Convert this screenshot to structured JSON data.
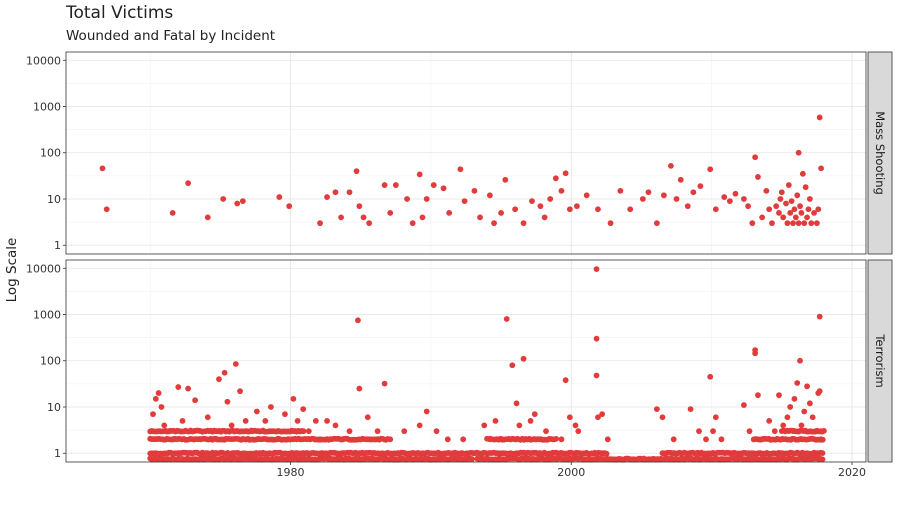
{
  "chart_data": {
    "type": "scatter",
    "title": "Total Victims",
    "subtitle": "Wounded and Fatal by Incident",
    "ylabel": "Log Scale",
    "xlabel": "",
    "y_scale": "log10",
    "ylim": [
      0.75,
      13000
    ],
    "xlim": [
      1964,
      2021
    ],
    "x_ticks": [
      "1980",
      "2000",
      "2020"
    ],
    "y_ticks": [
      "1",
      "10",
      "100",
      "1000",
      "10000"
    ],
    "point_color": "#e23b3b",
    "facets": [
      {
        "name": "Mass Shooting",
        "points": [
          [
            1966.6,
            46
          ],
          [
            1966.9,
            6
          ],
          [
            1971.6,
            5
          ],
          [
            1972.7,
            22
          ],
          [
            1974.1,
            4
          ],
          [
            1975.2,
            10
          ],
          [
            1976.2,
            8
          ],
          [
            1976.6,
            9
          ],
          [
            1979.2,
            11
          ],
          [
            1979.9,
            7
          ],
          [
            1982.1,
            3
          ],
          [
            1982.6,
            11
          ],
          [
            1983.2,
            14
          ],
          [
            1983.6,
            4
          ],
          [
            1984.2,
            14
          ],
          [
            1984.7,
            40
          ],
          [
            1984.9,
            7
          ],
          [
            1985.2,
            4
          ],
          [
            1985.6,
            3
          ],
          [
            1986.7,
            20
          ],
          [
            1987.1,
            5
          ],
          [
            1987.5,
            20
          ],
          [
            1988.3,
            10
          ],
          [
            1988.7,
            3
          ],
          [
            1989.2,
            34
          ],
          [
            1989.4,
            4
          ],
          [
            1989.7,
            10
          ],
          [
            1990.2,
            20
          ],
          [
            1990.9,
            17
          ],
          [
            1991.3,
            5
          ],
          [
            1992.1,
            44
          ],
          [
            1992.4,
            9
          ],
          [
            1993.1,
            15
          ],
          [
            1993.5,
            4
          ],
          [
            1994.2,
            12
          ],
          [
            1994.5,
            3
          ],
          [
            1995.0,
            5
          ],
          [
            1995.3,
            26
          ],
          [
            1996.0,
            6
          ],
          [
            1996.6,
            3
          ],
          [
            1997.2,
            9
          ],
          [
            1997.8,
            7
          ],
          [
            1998.1,
            4
          ],
          [
            1998.5,
            10
          ],
          [
            1998.9,
            28
          ],
          [
            1999.3,
            15
          ],
          [
            1999.6,
            36
          ],
          [
            1999.9,
            6
          ],
          [
            2000.4,
            7
          ],
          [
            2001.1,
            12
          ],
          [
            2001.9,
            6
          ],
          [
            2002.8,
            3
          ],
          [
            2003.5,
            15
          ],
          [
            2004.2,
            6
          ],
          [
            2005.1,
            10
          ],
          [
            2005.5,
            14
          ],
          [
            2006.1,
            3
          ],
          [
            2006.6,
            12
          ],
          [
            2007.1,
            52
          ],
          [
            2007.5,
            10
          ],
          [
            2007.8,
            26
          ],
          [
            2008.3,
            7
          ],
          [
            2008.7,
            14
          ],
          [
            2009.2,
            19
          ],
          [
            2009.9,
            44
          ],
          [
            2010.3,
            6
          ],
          [
            2010.9,
            11
          ],
          [
            2011.3,
            9
          ],
          [
            2011.7,
            13
          ],
          [
            2012.3,
            10
          ],
          [
            2012.6,
            7
          ],
          [
            2012.9,
            3
          ],
          [
            2013.1,
            80
          ],
          [
            2013.3,
            30
          ],
          [
            2013.6,
            4
          ],
          [
            2013.9,
            15
          ],
          [
            2014.1,
            6
          ],
          [
            2014.3,
            3
          ],
          [
            2014.6,
            7
          ],
          [
            2014.8,
            5
          ],
          [
            2015.0,
            14
          ],
          [
            2015.1,
            4
          ],
          [
            2015.3,
            8
          ],
          [
            2015.4,
            3
          ],
          [
            2015.6,
            5
          ],
          [
            2015.7,
            9
          ],
          [
            2015.8,
            3
          ],
          [
            2015.9,
            6
          ],
          [
            2016.0,
            4
          ],
          [
            2016.1,
            12
          ],
          [
            2016.2,
            3
          ],
          [
            2016.3,
            7
          ],
          [
            2016.4,
            5
          ],
          [
            2016.5,
            35
          ],
          [
            2016.6,
            3
          ],
          [
            2016.7,
            18
          ],
          [
            2016.8,
            4
          ],
          [
            2016.9,
            6
          ],
          [
            2017.0,
            10
          ],
          [
            2017.1,
            3
          ],
          [
            2017.3,
            5
          ],
          [
            2017.5,
            3
          ],
          [
            2017.6,
            6
          ],
          [
            2017.7,
            580
          ],
          [
            2017.8,
            46
          ],
          [
            2016.2,
            100
          ],
          [
            2015.5,
            20
          ],
          [
            2014.9,
            10
          ]
        ]
      },
      {
        "name": "Terrorism",
        "points": [
          [
            1970.2,
            7
          ],
          [
            1970.4,
            15
          ],
          [
            1970.6,
            20
          ],
          [
            1970.8,
            10
          ],
          [
            1971.0,
            4
          ],
          [
            1971.3,
            3
          ],
          [
            1971.7,
            2
          ],
          [
            1972.0,
            27
          ],
          [
            1972.3,
            5
          ],
          [
            1972.7,
            25
          ],
          [
            1973.2,
            14
          ],
          [
            1973.6,
            2
          ],
          [
            1974.1,
            6
          ],
          [
            1974.6,
            3
          ],
          [
            1974.9,
            40
          ],
          [
            1975.3,
            55
          ],
          [
            1975.5,
            13
          ],
          [
            1975.8,
            4
          ],
          [
            1976.1,
            85
          ],
          [
            1976.4,
            22
          ],
          [
            1976.8,
            5
          ],
          [
            1977.2,
            3
          ],
          [
            1977.6,
            8
          ],
          [
            1978.2,
            5
          ],
          [
            1978.6,
            10
          ],
          [
            1979.1,
            2
          ],
          [
            1979.6,
            7
          ],
          [
            1980.2,
            15
          ],
          [
            1980.5,
            5
          ],
          [
            1980.9,
            9
          ],
          [
            1981.3,
            3
          ],
          [
            1981.8,
            5
          ],
          [
            1982.1,
            2
          ],
          [
            1982.6,
            5
          ],
          [
            1983.2,
            4
          ],
          [
            1983.7,
            2
          ],
          [
            1984.2,
            3
          ],
          [
            1984.8,
            750
          ],
          [
            1984.9,
            25
          ],
          [
            1985.5,
            6
          ],
          [
            1986.2,
            3
          ],
          [
            1986.7,
            32
          ],
          [
            1987.1,
            2
          ],
          [
            1988.1,
            3
          ],
          [
            1989.2,
            4
          ],
          [
            1989.7,
            8
          ],
          [
            1990.4,
            3
          ],
          [
            1991.2,
            2
          ],
          [
            1992.3,
            2
          ],
          [
            1993.8,
            4
          ],
          [
            1994.2,
            2
          ],
          [
            1994.6,
            5
          ],
          [
            1995.1,
            2
          ],
          [
            1995.4,
            800
          ],
          [
            1995.8,
            80
          ],
          [
            1996.1,
            12
          ],
          [
            1996.3,
            4
          ],
          [
            1996.6,
            110
          ],
          [
            1997.1,
            5
          ],
          [
            1997.4,
            7
          ],
          [
            1998.2,
            3
          ],
          [
            1999.3,
            2
          ],
          [
            1999.6,
            38
          ],
          [
            1999.9,
            6
          ],
          [
            2000.3,
            4
          ],
          [
            2000.5,
            3
          ],
          [
            2001.8,
            9600
          ],
          [
            2001.8,
            300
          ],
          [
            2001.8,
            48
          ],
          [
            2001.9,
            6
          ],
          [
            2002.2,
            7
          ],
          [
            2002.6,
            2
          ],
          [
            2006.1,
            9
          ],
          [
            2006.5,
            6
          ],
          [
            2007.3,
            2
          ],
          [
            2008.5,
            9
          ],
          [
            2009.1,
            3
          ],
          [
            2009.6,
            2
          ],
          [
            2009.9,
            45
          ],
          [
            2010.1,
            3
          ],
          [
            2010.3,
            6
          ],
          [
            2010.7,
            2
          ],
          [
            2012.3,
            11
          ],
          [
            2012.7,
            3
          ],
          [
            2013.1,
            170
          ],
          [
            2013.1,
            145
          ],
          [
            2013.3,
            18
          ],
          [
            2013.6,
            2
          ],
          [
            2014.1,
            5
          ],
          [
            2014.5,
            3
          ],
          [
            2014.8,
            18
          ],
          [
            2015.1,
            4
          ],
          [
            2015.4,
            6
          ],
          [
            2015.6,
            10
          ],
          [
            2015.8,
            3
          ],
          [
            2015.9,
            15
          ],
          [
            2016.1,
            33
          ],
          [
            2016.3,
            100
          ],
          [
            2016.4,
            4
          ],
          [
            2016.6,
            8
          ],
          [
            2016.8,
            28
          ],
          [
            2017.0,
            12
          ],
          [
            2017.2,
            6
          ],
          [
            2017.4,
            3
          ],
          [
            2017.6,
            20
          ],
          [
            2017.7,
            22
          ],
          [
            2017.7,
            900
          ],
          [
            2017.8,
            2
          ]
        ],
        "dense_levels": [
          {
            "y": 0.75,
            "x_range": [
              1970,
              1993
            ]
          },
          {
            "y": 0.75,
            "x_range": [
              1993.3,
              2018
            ]
          },
          {
            "y": 1,
            "x_range": [
              1970,
              2002.6
            ]
          },
          {
            "y": 1,
            "x_range": [
              2006.5,
              2018
            ]
          },
          {
            "y": 2,
            "x_range": [
              1970,
              1987
            ]
          },
          {
            "y": 2,
            "x_range": [
              1994,
              1999
            ]
          },
          {
            "y": 2,
            "x_range": [
              2013,
              2018
            ]
          },
          {
            "y": 3,
            "x_range": [
              1970,
              1981
            ]
          },
          {
            "y": 3,
            "x_range": [
              2015,
              2018
            ]
          }
        ]
      }
    ],
    "grid": true,
    "legend": "none"
  }
}
